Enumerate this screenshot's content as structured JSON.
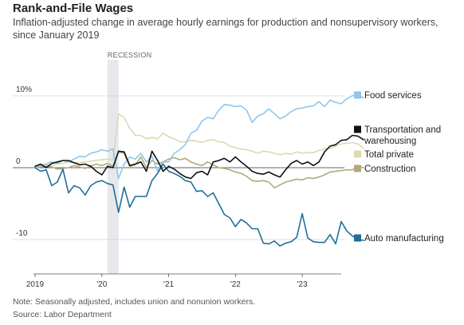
{
  "header": {
    "title": "Rank-and-File Wages",
    "subtitle": "Inflation-adjusted change in average hourly earnings for production and nonsupervisory workers, since January 2019"
  },
  "footer": {
    "note": "Note: Seasonally adjusted, includes union and nonunion workers.",
    "source": "Source: Labor Department"
  },
  "chart_data": {
    "type": "line",
    "title": "Rank-and-File Wages",
    "subtitle": "Inflation-adjusted change in average hourly earnings for production and nonsupervisory workers, since January 2019",
    "xlabel": "",
    "ylabel": "",
    "x_start": "2019-01",
    "x_end": "2023-08",
    "x_ticks": [
      {
        "label": "2019",
        "x": "2019-01"
      },
      {
        "label": "'20",
        "x": "2020-01"
      },
      {
        "label": "'21",
        "x": "2021-01"
      },
      {
        "label": "'22",
        "x": "2022-01"
      },
      {
        "label": "'23",
        "x": "2023-01"
      }
    ],
    "y_ticks": [
      {
        "label": "10%",
        "value": 10
      },
      {
        "label": "0",
        "value": 0
      },
      {
        "label": "-10",
        "value": -10
      }
    ],
    "ylim": [
      -15,
      13
    ],
    "grid": "horizontal",
    "legend_position": "right",
    "annotation": {
      "label": "RECESSION",
      "start": "2020-02",
      "end": "2020-04"
    },
    "series": [
      {
        "name": "Food services",
        "color": "#8fc6ea",
        "values": [
          0.0,
          0.3,
          0.5,
          0.8,
          0.6,
          1.0,
          0.8,
          1.2,
          1.6,
          1.5,
          2.0,
          2.2,
          2.5,
          2.3,
          2.6,
          -1.5,
          0.5,
          1.5,
          1.2,
          2.0,
          0.8,
          1.6,
          -0.5,
          0.8,
          0.8,
          2.0,
          2.5,
          3.2,
          4.8,
          5.2,
          6.5,
          7.0,
          6.8,
          8.0,
          8.8,
          8.7,
          8.5,
          8.6,
          8.0,
          6.3,
          7.2,
          7.5,
          8.2,
          7.5,
          6.8,
          7.2,
          7.8,
          8.2,
          8.3,
          8.5,
          8.6,
          9.2,
          8.5,
          9.4,
          9.1,
          8.9,
          9.6,
          10.0,
          10.2,
          9.7
        ]
      },
      {
        "name": "Transportation and warehousing",
        "color": "#111111",
        "values": [
          0.2,
          0.5,
          0.0,
          0.6,
          0.8,
          1.0,
          1.0,
          0.7,
          0.4,
          0.5,
          0.2,
          -0.5,
          -1.0,
          0.2,
          0.0,
          2.3,
          2.2,
          0.3,
          0.5,
          0.8,
          -0.5,
          2.3,
          1.0,
          -0.5,
          0.2,
          -0.2,
          -0.8,
          -1.3,
          -1.5,
          -0.7,
          -0.5,
          -1.0,
          0.8,
          1.0,
          1.3,
          0.8,
          1.5,
          0.8,
          0.2,
          -0.5,
          -0.8,
          -0.9,
          -0.6,
          -1.0,
          -1.3,
          -0.3,
          0.6,
          1.0,
          0.5,
          0.8,
          0.3,
          0.8,
          2.2,
          3.0,
          3.2,
          3.8,
          3.9,
          4.5,
          4.4,
          3.9
        ]
      },
      {
        "name": "Total private",
        "color": "#ddd9b0",
        "values": [
          0.0,
          0.2,
          0.4,
          0.3,
          0.5,
          0.6,
          0.8,
          0.7,
          0.7,
          0.8,
          0.9,
          1.0,
          1.1,
          1.2,
          1.1,
          7.5,
          7.0,
          5.5,
          4.5,
          4.5,
          4.0,
          4.2,
          4.0,
          4.8,
          4.3,
          4.0,
          3.6,
          3.6,
          3.8,
          3.7,
          3.5,
          3.8,
          3.9,
          3.6,
          3.5,
          3.0,
          2.8,
          2.6,
          2.5,
          2.3,
          2.0,
          2.3,
          2.2,
          2.0,
          1.8,
          2.0,
          1.9,
          2.2,
          2.0,
          2.1,
          2.1,
          2.4,
          2.6,
          2.7,
          3.0,
          3.3,
          3.4,
          3.5,
          3.3,
          2.7
        ]
      },
      {
        "name": "Construction",
        "color": "#b3a977",
        "values": [
          0.0,
          0.1,
          0.2,
          0.1,
          -0.2,
          -0.1,
          0.0,
          0.3,
          0.1,
          -0.1,
          0.2,
          0.5,
          0.3,
          0.6,
          0.2,
          2.2,
          2.0,
          0.2,
          0.4,
          1.5,
          0.0,
          1.0,
          0.5,
          0.8,
          1.2,
          1.4,
          1.1,
          1.3,
          0.8,
          0.5,
          0.3,
          0.8,
          0.4,
          0.0,
          -0.1,
          -0.3,
          -0.6,
          -0.8,
          -1.2,
          -1.8,
          -1.9,
          -1.8,
          -2.0,
          -2.8,
          -2.4,
          -2.0,
          -1.8,
          -1.6,
          -1.7,
          -1.4,
          -1.5,
          -1.3,
          -1.0,
          -0.6,
          -0.5,
          -0.4,
          -0.3,
          -0.3,
          0.2,
          0.0
        ]
      },
      {
        "name": "Auto manufacturing",
        "color": "#1f6f99",
        "values": [
          0.0,
          -0.5,
          -0.3,
          -2.5,
          -2.0,
          -0.2,
          -3.5,
          -2.5,
          -2.8,
          -3.8,
          -2.5,
          -2.0,
          -1.8,
          -2.2,
          -2.4,
          -6.2,
          -2.7,
          -5.5,
          -4.0,
          -4.0,
          -4.0,
          -1.8,
          -0.8,
          0.5,
          -0.5,
          -0.8,
          -1.2,
          -1.8,
          -2.0,
          -3.3,
          -3.2,
          -4.0,
          -3.5,
          -5.0,
          -6.5,
          -7.0,
          -8.2,
          -7.2,
          -7.7,
          -8.5,
          -8.5,
          -10.5,
          -10.6,
          -10.2,
          -10.9,
          -10.5,
          -10.3,
          -9.7,
          -6.4,
          -9.8,
          -10.3,
          -10.4,
          -10.4,
          -9.3,
          -10.6,
          -7.5,
          -8.8,
          -9.5,
          -10.0,
          -10.1
        ]
      }
    ]
  }
}
